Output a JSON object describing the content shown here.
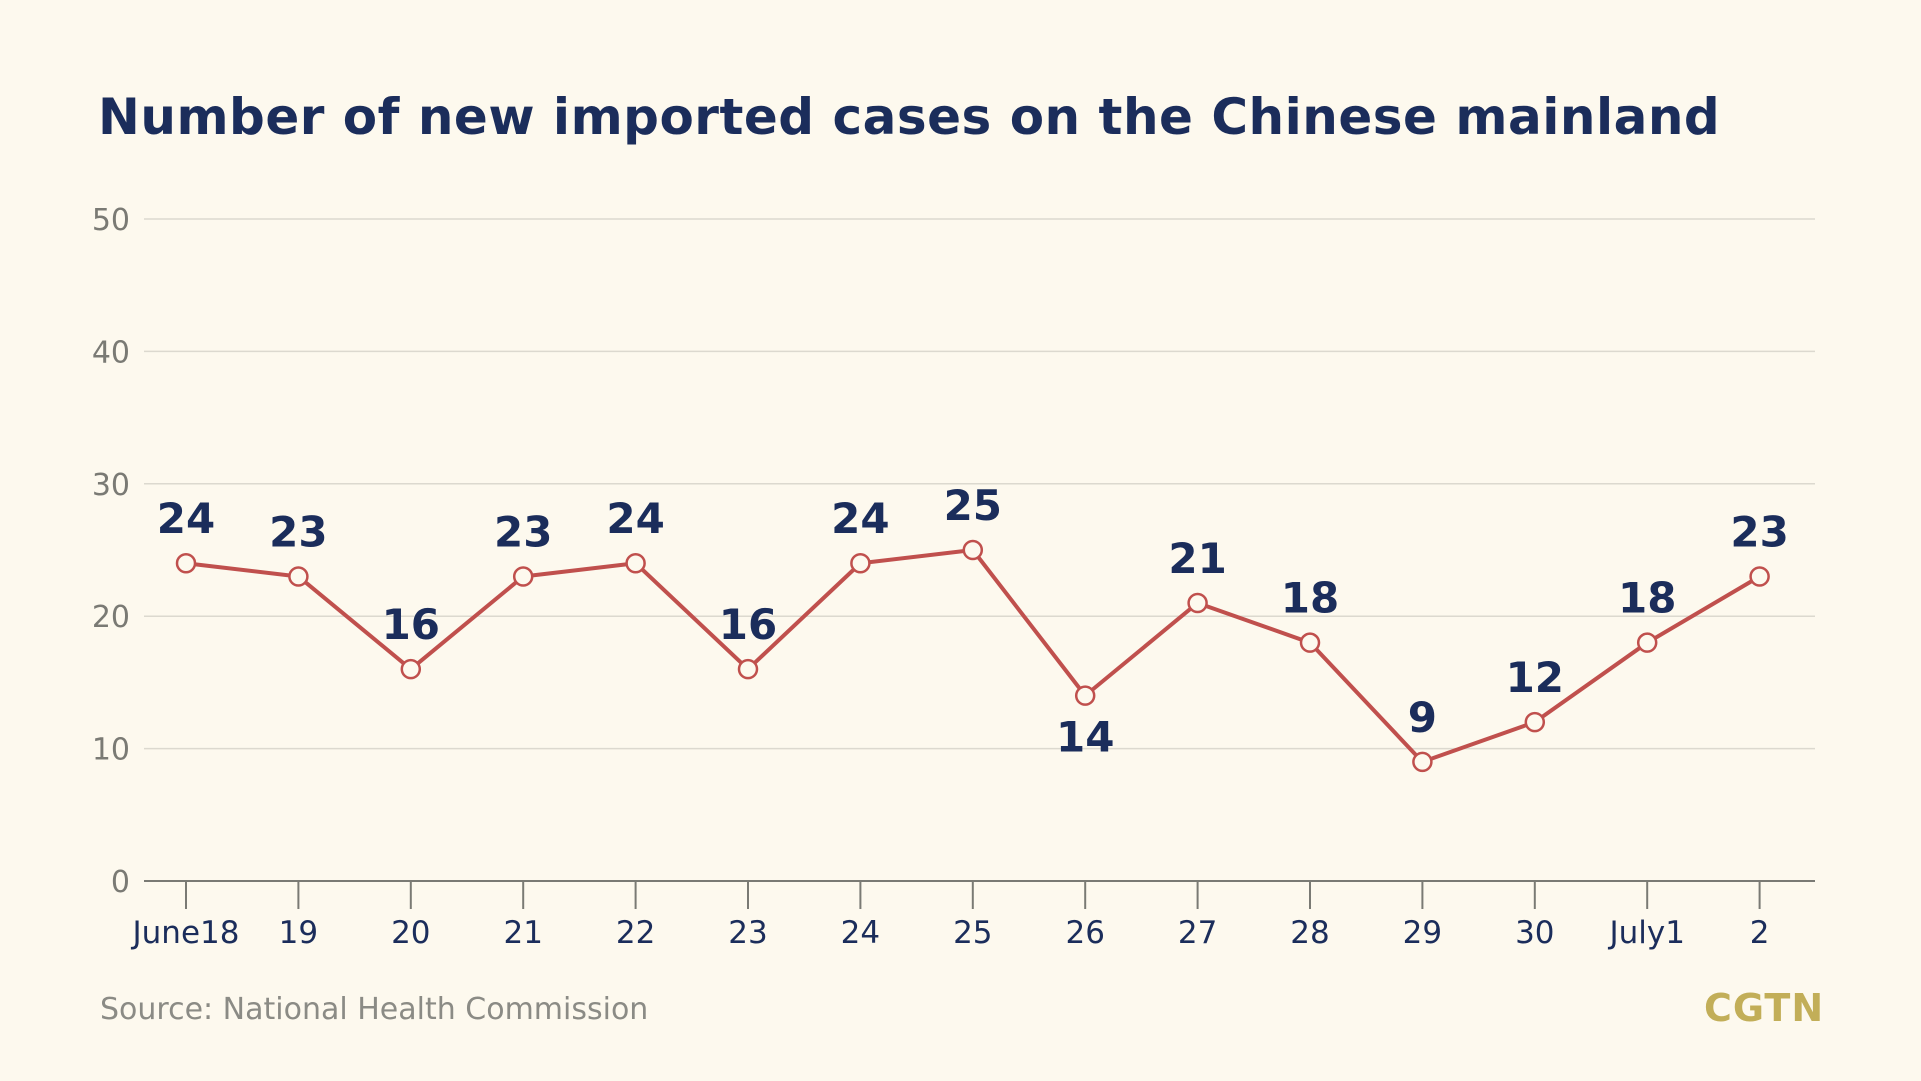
{
  "title": "Number of new imported cases on the Chinese mainland",
  "source": "Source: National Health Commission",
  "brand": "CGTN",
  "colors": {
    "background": "#fdf9ee",
    "title": "#1b2d5b",
    "line": "#c0504d",
    "gridline": "#dcd9cf",
    "axis": "#7a7a74",
    "brand": "#c2ae58"
  },
  "chart_data": {
    "type": "line",
    "categories": [
      "June18",
      "19",
      "20",
      "21",
      "22",
      "23",
      "24",
      "25",
      "26",
      "27",
      "28",
      "29",
      "30",
      "July1",
      "2"
    ],
    "values": [
      24,
      23,
      16,
      23,
      24,
      16,
      24,
      25,
      14,
      21,
      18,
      9,
      12,
      18,
      23
    ],
    "ylim": [
      0,
      50
    ],
    "yticks": [
      0,
      10,
      20,
      30,
      40,
      50
    ],
    "grid": true,
    "label_positions": [
      "above",
      "above",
      "above",
      "above",
      "above",
      "above",
      "above",
      "above",
      "below",
      "above",
      "above",
      "above",
      "above",
      "above",
      "above"
    ]
  }
}
